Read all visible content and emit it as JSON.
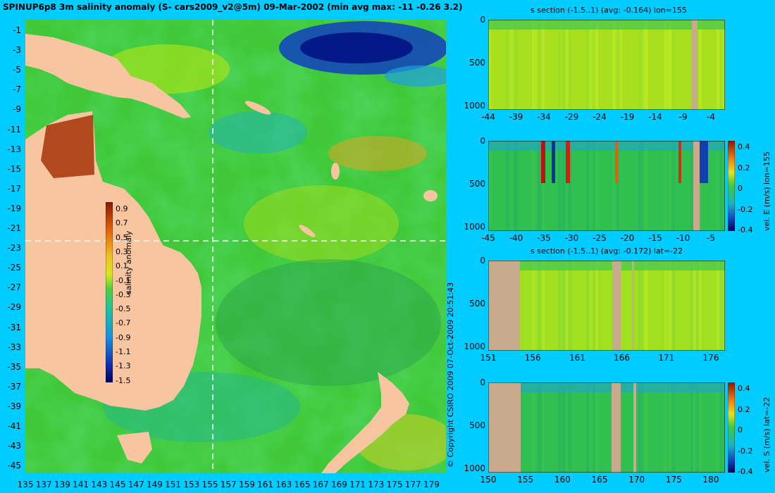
{
  "title": "SPINUP6p8 3m salinity anomaly (S- cars2009_v2@5m) 09-Mar-2002 (min avg max: -11 -0.26 3.2)",
  "map": {
    "lat_labels": [
      "-1",
      "-3",
      "-5",
      "-7",
      "-9",
      "-11",
      "-13",
      "-15",
      "-17",
      "-19",
      "-21",
      "-23",
      "-25",
      "-27",
      "-29",
      "-31",
      "-33",
      "-35",
      "-37",
      "-39",
      "-41",
      "-43",
      "-45"
    ],
    "lon_labels": [
      "135",
      "137",
      "139",
      "141",
      "143",
      "145",
      "147",
      "149",
      "151",
      "153",
      "155",
      "157",
      "159",
      "161",
      "163",
      "165",
      "167",
      "169",
      "171",
      "173",
      "175",
      "177",
      "179"
    ],
    "colorbar": {
      "title": "salinity anomaly",
      "ticks": [
        "0.9",
        "0.7",
        "0.5",
        "0.3",
        "0.1",
        "-0.1",
        "-0.3",
        "-0.5",
        "-0.7",
        "-0.9",
        "-1.1",
        "-1.3",
        "-1.5"
      ]
    },
    "section_lon": 155,
    "section_lat": -22,
    "copyright": "© Copyright CSIRO 2009   07-Oct-2009 20:51:43"
  },
  "panels": [
    {
      "title": "s section (-1.5..1) (avg: -0.164) lon=155",
      "y_ticks": [
        "0",
        "500",
        "1000"
      ],
      "x_ticks": [
        "-44",
        "-39",
        "-34",
        "-29",
        "-24",
        "-19",
        "-14",
        "-9",
        "-4"
      ],
      "scale": null
    },
    {
      "title": "",
      "y_ticks": [
        "0",
        "500",
        "1000"
      ],
      "x_ticks": [
        "-45",
        "-40",
        "-35",
        "-30",
        "-25",
        "-20",
        "-15",
        "-10",
        "-5"
      ],
      "scale": {
        "title": "vel. E (m/s) lon=155",
        "ticks": [
          "0.4",
          "0.2",
          "0",
          "-0.2",
          "-0.4"
        ]
      }
    },
    {
      "title": "s section (-1.5..1) (avg: -0.172) lat=-22",
      "y_ticks": [
        "0",
        "500",
        "1000"
      ],
      "x_ticks": [
        "151",
        "156",
        "161",
        "166",
        "171",
        "176"
      ],
      "scale": null
    },
    {
      "title": "",
      "y_ticks": [
        "0",
        "500",
        "1000"
      ],
      "x_ticks": [
        "150",
        "155",
        "160",
        "165",
        "170",
        "175",
        "180"
      ],
      "scale": {
        "title": "vel. S (m/s) lat=-22",
        "ticks": [
          "0.4",
          "0.2",
          "0",
          "-0.2",
          "-0.4"
        ]
      }
    }
  ],
  "colors": {
    "background": "#00ccff",
    "ocean_base": "#3cc83c",
    "land": "#f7c59f",
    "section_land": "#c8aa8c"
  }
}
